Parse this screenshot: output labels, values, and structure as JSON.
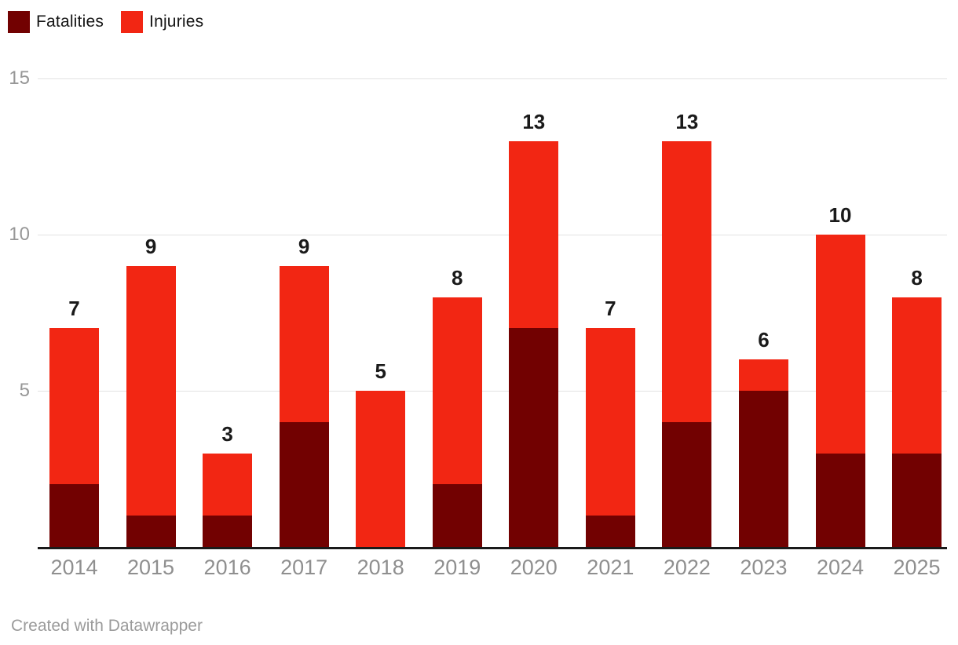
{
  "legend": {
    "items": [
      {
        "label": "Fatalities",
        "color": "#720101"
      },
      {
        "label": "Injuries",
        "color": "#f22613"
      }
    ]
  },
  "footer": {
    "text": "Created with Datawrapper"
  },
  "chart_data": {
    "type": "bar",
    "stacked": true,
    "categories": [
      "2014",
      "2015",
      "2016",
      "2017",
      "2018",
      "2019",
      "2020",
      "2021",
      "2022",
      "2023",
      "2024",
      "2025"
    ],
    "series": [
      {
        "name": "Fatalities",
        "color": "#720101",
        "values": [
          2,
          1,
          1,
          4,
          0,
          2,
          7,
          1,
          4,
          5,
          3,
          3
        ]
      },
      {
        "name": "Injuries",
        "color": "#f22613",
        "values": [
          5,
          8,
          2,
          5,
          5,
          6,
          6,
          6,
          9,
          1,
          7,
          5
        ]
      }
    ],
    "totals": [
      7,
      9,
      3,
      9,
      5,
      8,
      13,
      7,
      13,
      6,
      10,
      8
    ],
    "total_labels_shown": true,
    "title": "",
    "xlabel": "",
    "ylabel": "",
    "ylim": [
      0,
      15
    ],
    "yticks": [
      5,
      10,
      15
    ],
    "grid": "horizontal",
    "legend_position": "top-left",
    "colors": {
      "value_label": "#1a1a1a",
      "tick_label": "#8f8f8f",
      "gridline": "#e2e2e2",
      "baseline": "#1a1a1a"
    }
  }
}
